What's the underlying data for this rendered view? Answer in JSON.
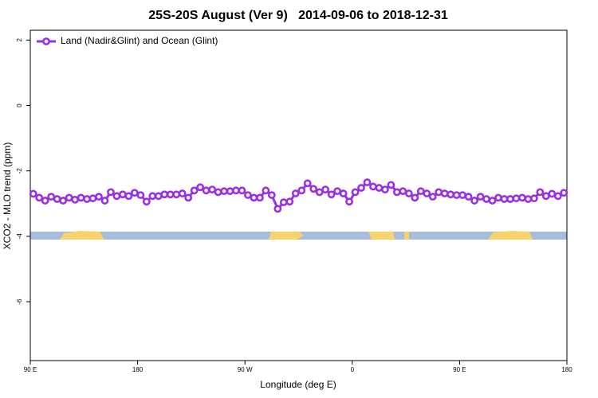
{
  "chart_data": {
    "type": "line",
    "title": "25S-20S August (Ver 9)   2014-09-06 to 2018-12-31",
    "x_label": "Longitude (deg E)",
    "y_label": "XCO2 - MLO trend (ppm)",
    "xlim": [
      90,
      540
    ],
    "xticks": [
      {
        "value": 90,
        "label": "90 E"
      },
      180,
      {
        "value": 270,
        "label": "90 W"
      },
      {
        "value": 360,
        "label": "0"
      },
      {
        "value": 450,
        "label": "90 E"
      },
      {
        "value": 540,
        "label": "180"
      }
    ],
    "ylim": [
      -7.8,
      2.3
    ],
    "yticks": [
      2,
      0,
      -2,
      -4,
      -6
    ],
    "legend": "top-left",
    "x": [
      92.5,
      97.5,
      102.5,
      107.5,
      112.5,
      117.5,
      122.5,
      127.5,
      132.5,
      137.5,
      142.5,
      147.5,
      152.5,
      157.5,
      162.5,
      167.5,
      172.5,
      177.5,
      182.5,
      187.5,
      192.5,
      197.5,
      202.5,
      207.5,
      212.5,
      217.5,
      222.5,
      227.5,
      232.5,
      237.5,
      242.5,
      247.5,
      252.5,
      257.5,
      262.5,
      267.5,
      272.5,
      277.5,
      282.5,
      287.5,
      292.5,
      297.5,
      302.5,
      307.5,
      312.5,
      317.5,
      322.5,
      327.5,
      332.5,
      337.5,
      342.5,
      347.5,
      352.5,
      357.5,
      362.5,
      367.5,
      372.5,
      377.5,
      382.5,
      387.5,
      392.5,
      397.5,
      402.5,
      407.5,
      412.5,
      417.5,
      422.5,
      427.5,
      432.5,
      437.5,
      442.5,
      447.5,
      452.5,
      457.5,
      462.5,
      467.5,
      472.5,
      477.5,
      482.5,
      487.5,
      492.5,
      497.5,
      502.5,
      507.5,
      512.5,
      517.5,
      522.5,
      527.5,
      532.5,
      537.5
    ],
    "series": [
      {
        "name": "Land (Nadir&Glint) and Ocean (Glint)",
        "color": "#9b30e0",
        "values": [
          -2.7,
          -2.82,
          -2.91,
          -2.79,
          -2.86,
          -2.91,
          -2.82,
          -2.88,
          -2.82,
          -2.86,
          -2.84,
          -2.79,
          -2.91,
          -2.65,
          -2.77,
          -2.72,
          -2.77,
          -2.67,
          -2.74,
          -2.94,
          -2.77,
          -2.77,
          -2.72,
          -2.72,
          -2.72,
          -2.69,
          -2.82,
          -2.6,
          -2.5,
          -2.6,
          -2.57,
          -2.65,
          -2.62,
          -2.62,
          -2.6,
          -2.6,
          -2.74,
          -2.82,
          -2.82,
          -2.6,
          -2.74,
          -3.16,
          -2.96,
          -2.94,
          -2.69,
          -2.6,
          -2.38,
          -2.55,
          -2.65,
          -2.57,
          -2.72,
          -2.62,
          -2.69,
          -2.94,
          -2.65,
          -2.52,
          -2.35,
          -2.48,
          -2.52,
          -2.57,
          -2.43,
          -2.65,
          -2.62,
          -2.69,
          -2.82,
          -2.62,
          -2.69,
          -2.79,
          -2.65,
          -2.69,
          -2.72,
          -2.74,
          -2.74,
          -2.79,
          -2.91,
          -2.79,
          -2.86,
          -2.91,
          -2.82,
          -2.86,
          -2.86,
          -2.84,
          -2.82,
          -2.86,
          -2.84,
          -2.65,
          -2.77,
          -2.7,
          -2.77,
          -2.67
        ]
      }
    ]
  }
}
